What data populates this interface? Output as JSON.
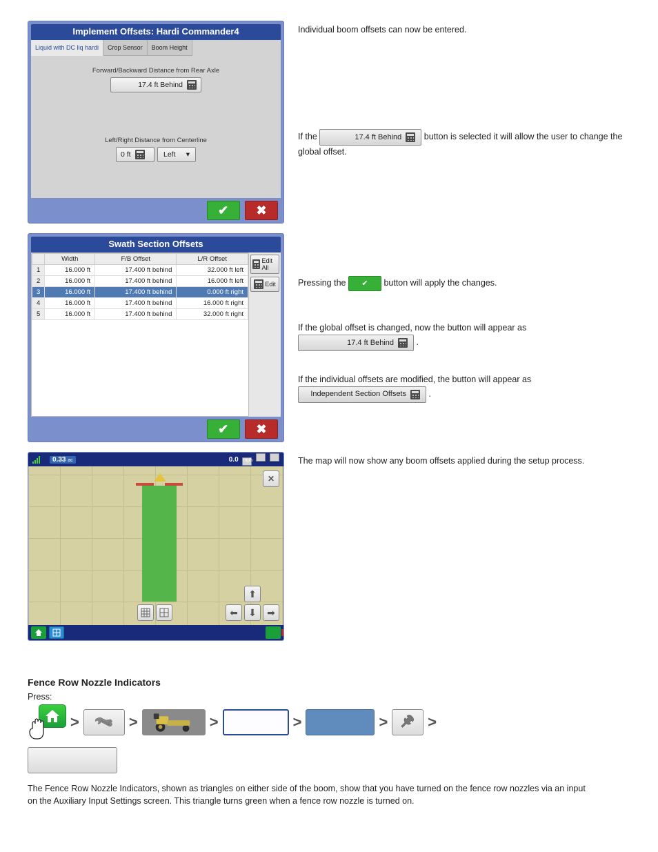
{
  "dialog1": {
    "title": "Implement Offsets: Hardi Commander4",
    "tabs": [
      "Liquid with DC liq hardi",
      "Crop Sensor",
      "Boom Height"
    ],
    "active_tab": 0,
    "section_fb_label": "Forward/Backward Distance from Rear Axle",
    "fb_value": "17.4 ft Behind",
    "section_lr_label": "Left/Right Distance from Centerline",
    "lr_value": "0 ft",
    "lr_direction": "Left",
    "colors": {
      "title_bg": "#2b4a99",
      "frame": "#7a8fcb",
      "body": "#d3d3d3",
      "confirm": "#37b038",
      "cancel": "#b82b2b"
    }
  },
  "right1": {
    "p0": "Individual boom offsets can now be entered.",
    "p1a": "If the ",
    "btn1": "17.4 ft Behind",
    "p1b": " button is selected it will allow the user to change the global offset.",
    "p2a": "Pressing the ",
    "p2b": " button will apply the changes."
  },
  "dialog2": {
    "title": "Swath Section Offsets",
    "columns": [
      "",
      "Width",
      "F/B Offset",
      "L/R Offset"
    ],
    "rows": [
      {
        "idx": "1",
        "w": "16.000 ft",
        "fb": "17.400 ft behind",
        "lr": "32.000 ft left"
      },
      {
        "idx": "2",
        "w": "16.000 ft",
        "fb": "17.400 ft behind",
        "lr": "16.000 ft left"
      },
      {
        "idx": "3",
        "w": "16.000 ft",
        "fb": "17.400 ft behind",
        "lr": "0.000 ft right",
        "selected": true
      },
      {
        "idx": "4",
        "w": "16.000 ft",
        "fb": "17.400 ft behind",
        "lr": "16.000 ft right"
      },
      {
        "idx": "5",
        "w": "16.000 ft",
        "fb": "17.400 ft behind",
        "lr": "32.000 ft right"
      }
    ],
    "btn_edit_all": "Edit All",
    "btn_edit": "Edit"
  },
  "right2": {
    "p1a": "If the global offset is changed, now the button will appear as ",
    "btn1": "17.4 ft Behind",
    "p1b": ".",
    "p2a": "If the individual offsets are modified, the button will appear as ",
    "btn2": "Independent Section Offsets",
    "p2b": "."
  },
  "map": {
    "acres": "0.33",
    "acres_unit": "ac",
    "speed": "0.0",
    "speed_unit": "mph",
    "colors": {
      "canvas": "#d6d1a2",
      "grid": "#c2bd8f",
      "strip": "#54b54a",
      "warn": "#e4c43c",
      "marks": "#c74a3c"
    }
  },
  "right3": {
    "p1": "The map will now show any boom offsets applied during the setup process."
  },
  "nav": {
    "heading": "Fence Row Nozzle Indicators",
    "intro": "Press: ",
    "long_btn": "",
    "para": "The Fence Row Nozzle Indicators, shown as triangles on either side of the boom, show that you have turned on the fence row nozzles via an input on the Auxiliary Input Settings screen. This triangle turns green when a fence row nozzle is turned on."
  }
}
